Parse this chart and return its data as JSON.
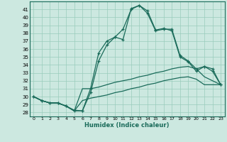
{
  "xlabel": "Humidex (Indice chaleur)",
  "background_color": "#cce8e0",
  "grid_color": "#99ccbb",
  "line_color": "#1a6b5a",
  "x_ticks": [
    0,
    1,
    2,
    3,
    4,
    5,
    6,
    7,
    8,
    9,
    10,
    11,
    12,
    13,
    14,
    15,
    16,
    17,
    18,
    19,
    20,
    21,
    22,
    23
  ],
  "ylim": [
    27.5,
    42.0
  ],
  "xlim": [
    -0.5,
    23.5
  ],
  "yticks": [
    28,
    29,
    30,
    31,
    32,
    33,
    34,
    35,
    36,
    37,
    38,
    39,
    40,
    41
  ],
  "series": [
    [
      30.0,
      29.5,
      29.2,
      29.2,
      28.8,
      28.3,
      28.2,
      30.5,
      34.5,
      36.5,
      37.5,
      38.5,
      41.0,
      41.5,
      40.5,
      38.3,
      38.5,
      38.5,
      35.2,
      34.5,
      33.5,
      33.8,
      33.5,
      31.5
    ],
    [
      30.0,
      29.5,
      29.2,
      29.2,
      28.8,
      28.2,
      28.2,
      31.0,
      35.5,
      37.0,
      37.5,
      37.2,
      41.1,
      41.5,
      40.8,
      38.4,
      38.6,
      38.3,
      35.0,
      34.4,
      33.2,
      33.8,
      33.2,
      31.5
    ],
    [
      30.0,
      29.5,
      29.2,
      29.2,
      28.8,
      28.2,
      31.0,
      31.0,
      31.2,
      31.5,
      31.8,
      32.0,
      32.2,
      32.5,
      32.7,
      33.0,
      33.2,
      33.5,
      33.7,
      33.8,
      33.5,
      32.5,
      32.0,
      31.5
    ],
    [
      30.0,
      29.5,
      29.2,
      29.2,
      28.8,
      28.2,
      29.5,
      29.8,
      30.0,
      30.2,
      30.5,
      30.7,
      31.0,
      31.2,
      31.5,
      31.7,
      32.0,
      32.2,
      32.4,
      32.5,
      32.2,
      31.5,
      31.5,
      31.5
    ]
  ],
  "markers": [
    true,
    true,
    false,
    false
  ]
}
